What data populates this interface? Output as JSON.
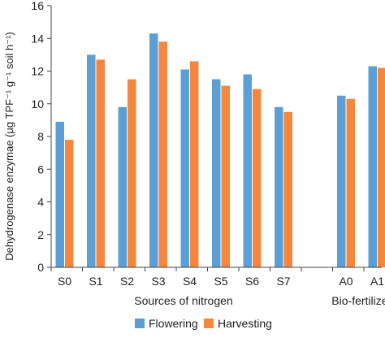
{
  "chart_data": {
    "type": "bar",
    "categories": [
      "S0",
      "S1",
      "S2",
      "S3",
      "S4",
      "S5",
      "S6",
      "S7",
      "A0",
      "A1"
    ],
    "group_labels": [
      {
        "label": "Sources of nitrogen",
        "categories": [
          "S0",
          "S1",
          "S2",
          "S3",
          "S4",
          "S5",
          "S6",
          "S7"
        ]
      },
      {
        "label": "Bio-fertilizer",
        "categories": [
          "A0",
          "A1"
        ]
      }
    ],
    "series": [
      {
        "name": "Flowering",
        "color": "#5b9fd5",
        "values": [
          8.9,
          13.0,
          9.8,
          14.3,
          12.1,
          11.5,
          11.8,
          9.8,
          10.5,
          12.3
        ]
      },
      {
        "name": "Harvesting",
        "color": "#f4873d",
        "values": [
          7.8,
          12.7,
          11.5,
          13.8,
          12.6,
          11.1,
          10.9,
          9.5,
          10.3,
          12.2
        ]
      }
    ],
    "ylabel": "Dehydrogenase enzymae (µg TPF⁻¹ g⁻¹ soil h⁻¹)",
    "ylim": [
      0,
      16
    ],
    "yticks": [
      0,
      2,
      4,
      6,
      8,
      10,
      12,
      14,
      16
    ],
    "grid": false,
    "legend_position": "bottom"
  }
}
